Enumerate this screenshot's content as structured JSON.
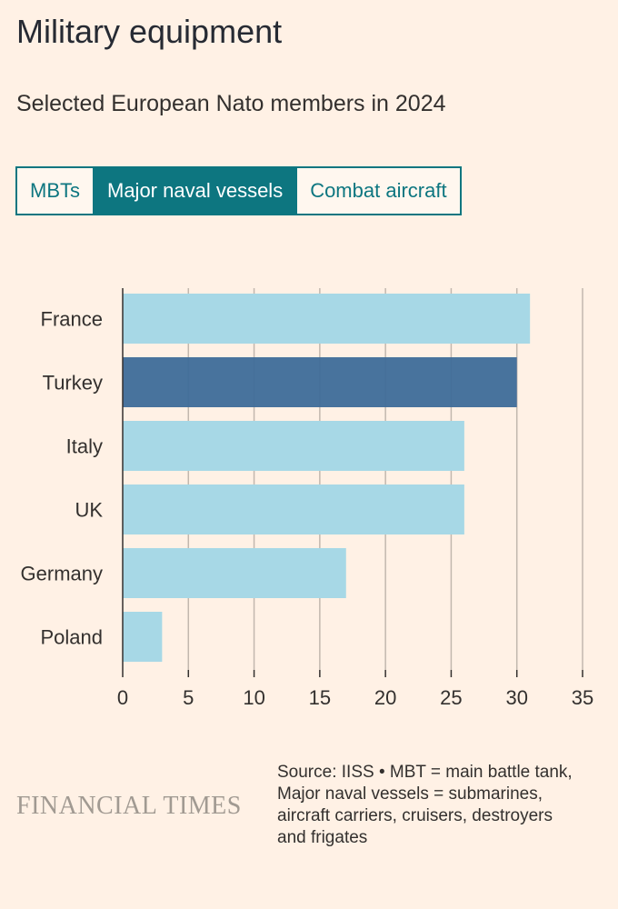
{
  "header": {
    "title": "Military equipment",
    "subtitle": "Selected European Nato members in 2024"
  },
  "tabs": [
    {
      "label": "MBTs",
      "active": false
    },
    {
      "label": "Major naval vessels",
      "active": true
    },
    {
      "label": "Combat aircraft",
      "active": false
    }
  ],
  "chart_data": {
    "type": "bar",
    "orientation": "horizontal",
    "title": "",
    "xlabel": "",
    "ylabel": "",
    "categories": [
      "France",
      "Turkey",
      "Italy",
      "UK",
      "Germany",
      "Poland"
    ],
    "values": [
      31,
      30,
      26,
      26,
      17,
      3
    ],
    "highlight": "Turkey",
    "xlim": [
      0,
      35
    ],
    "xticks": [
      0,
      5,
      10,
      15,
      20,
      25,
      30,
      35
    ],
    "grid": true,
    "colors": {
      "default": "#a7d8e6",
      "highlight": "#3e6b99",
      "grid": "#c2b8ae",
      "axis": "#33302e"
    }
  },
  "footer": {
    "logo": "FINANCIAL TIMES",
    "source_lines": [
      "Source: IISS • MBT = main battle tank,",
      "Major naval vessels = submarines,",
      "aircraft carriers, cruisers, destroyers",
      "and frigates"
    ]
  }
}
